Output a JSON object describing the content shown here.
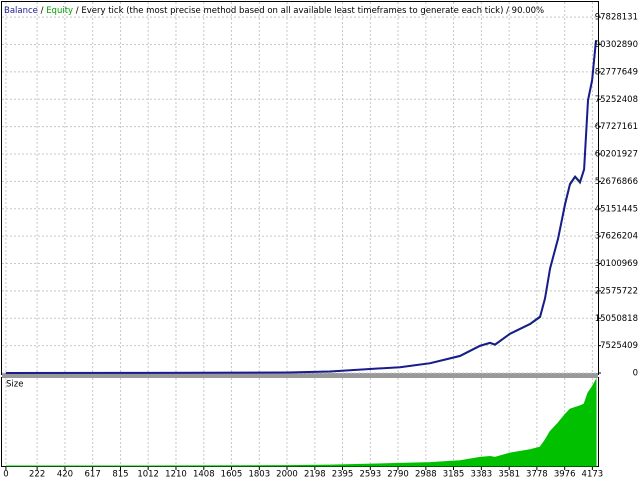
{
  "chart_data": [
    {
      "type": "line",
      "separator": "/",
      "subtitle": "Every tick (the most precise method based on all available least timeframes to generate each tick)",
      "quality": "90.00%",
      "x": [
        0,
        1000,
        2000,
        2306,
        2804,
        3018,
        3231,
        3374,
        3445,
        3480,
        3587,
        3730,
        3801,
        3836,
        3872,
        3929,
        3979,
        4014,
        4050,
        4085,
        4114,
        4142,
        4171,
        4199
      ],
      "series": [
        {
          "name": "Balance",
          "color": "#1b1b8f",
          "values": [
            10000,
            30000,
            150000,
            400000,
            1600000,
            2700000,
            4700000,
            7500000,
            8300000,
            7800000,
            10800000,
            13500000,
            15500000,
            20500000,
            28800000,
            37000000,
            46500000,
            52000000,
            54000000,
            52500000,
            56000000,
            75000000,
            80500000,
            91500000
          ]
        },
        {
          "name": "Equity",
          "color": "#00a000",
          "values": [
            10000,
            30000,
            150000,
            400000,
            1600000,
            2650000,
            4600000,
            7400000,
            8200000,
            7700000,
            10700000,
            13400000,
            15300000,
            20300000,
            28500000,
            36800000,
            46200000,
            51700000,
            53800000,
            52200000,
            55800000,
            74700000,
            80200000,
            91200000
          ]
        }
      ],
      "xlim": [
        -28,
        4213
      ],
      "xticks": [
        0,
        222,
        420,
        617,
        815,
        1012,
        1210,
        1408,
        1605,
        1803,
        2000,
        2198,
        2395,
        2593,
        2790,
        2988,
        3185,
        3383,
        3581,
        3778,
        3976,
        4173
      ],
      "ylim": [
        0,
        102000000
      ],
      "yticks": [
        0,
        7525409,
        15050818,
        22575722,
        30100969,
        37626204,
        45151445,
        52676866,
        60201927,
        67727161,
        75252408,
        82777649,
        90302890,
        97828131
      ],
      "grid": true
    },
    {
      "type": "area",
      "title": "Size",
      "color": "#00c000",
      "x": [
        0,
        1000,
        2000,
        2306,
        2804,
        3018,
        3231,
        3374,
        3445,
        3480,
        3587,
        3730,
        3801,
        3836,
        3872,
        3929,
        3979,
        4014,
        4050,
        4085,
        4114,
        4142,
        4171,
        4199
      ],
      "values": [
        0,
        0,
        0.5,
        1,
        3,
        4,
        6,
        10,
        11,
        10,
        15,
        19,
        22,
        30,
        40,
        50,
        60,
        66,
        68,
        70,
        72,
        85,
        92,
        100
      ],
      "ylim": [
        0,
        100
      ]
    }
  ]
}
